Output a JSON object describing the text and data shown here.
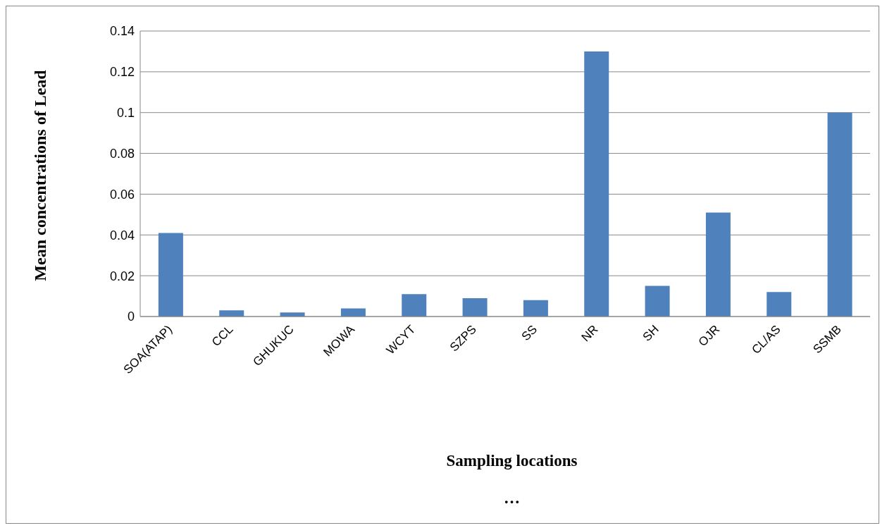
{
  "chart_data": {
    "type": "bar",
    "xlabel": "Sampling locations",
    "ylabel": "Mean concentrations of Lead",
    "categories": [
      "SOA(ATAP)",
      "CCL",
      "GHUKUC",
      "MOWA",
      "WCYT",
      "SZPS",
      "SS",
      "NR",
      "SH",
      "OJR",
      "CL/AS",
      "SSMB"
    ],
    "values": [
      0.041,
      0.003,
      0.002,
      0.004,
      0.011,
      0.009,
      0.008,
      0.13,
      0.015,
      0.051,
      0.012,
      0.1
    ],
    "color": "#4f81bd",
    "ylim": [
      0,
      0.14
    ],
    "yticks": [
      0,
      0.02,
      0.04,
      0.06,
      0.08,
      0.1,
      0.12,
      0.14
    ],
    "grid": "y",
    "legend": false,
    "annotations": [
      "…"
    ]
  }
}
